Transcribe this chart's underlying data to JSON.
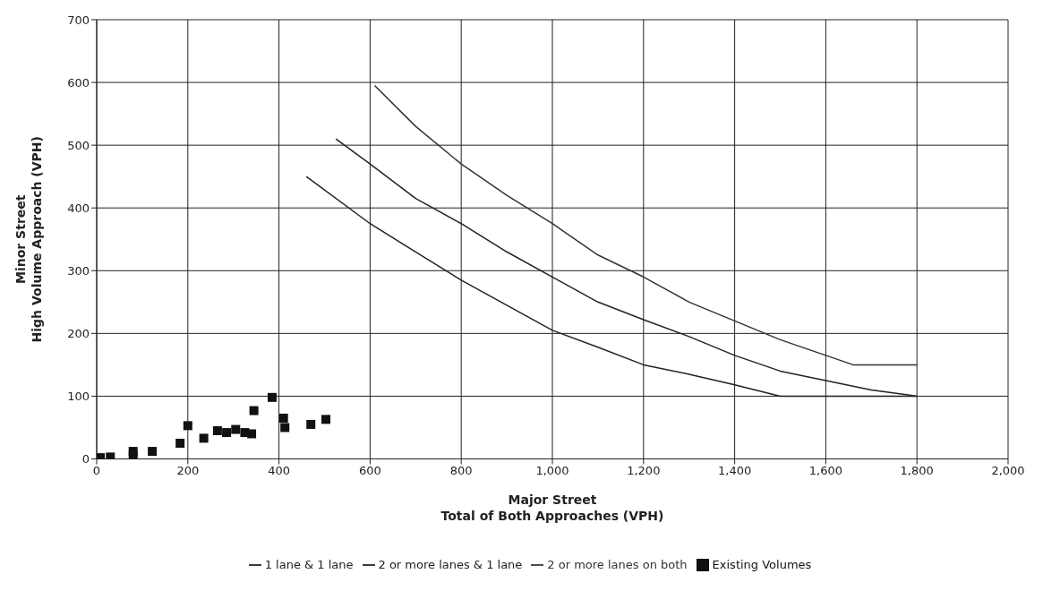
{
  "chart_data": {
    "type": "scatter",
    "xlabel": "Major Street\nTotal of Both Approaches (VPH)",
    "ylabel": "Minor Street\nHigh Volume Approach (VPH)",
    "xlim": [
      0,
      2000
    ],
    "ylim": [
      0,
      700
    ],
    "xticks": [
      0,
      200,
      400,
      600,
      800,
      {
        "value": 1000,
        "label": "1,000"
      },
      {
        "value": 1200,
        "label": "1,200"
      },
      {
        "value": 1400,
        "label": "1,400"
      },
      {
        "value": 1600,
        "label": "1,600"
      },
      {
        "value": 1800,
        "label": "1,800"
      },
      {
        "value": 2000,
        "label": "2,000"
      }
    ],
    "yticks": [
      0,
      100,
      200,
      300,
      400,
      500,
      600,
      700
    ],
    "grid": true,
    "legend": "bottom",
    "series": [
      {
        "name": "Existing Volumes",
        "marker": "square",
        "color": "#111111",
        "x": [
          8,
          30,
          80,
          80,
          122,
          183,
          200,
          235,
          265,
          285,
          305,
          325,
          340,
          345,
          385,
          410,
          413,
          470,
          503
        ],
        "values": [
          2,
          3,
          5,
          12,
          12,
          25,
          53,
          33,
          45,
          42,
          47,
          42,
          40,
          77,
          98,
          65,
          50,
          55,
          63
        ]
      },
      {
        "name": "1 lane & 1 lane",
        "type": "line",
        "marker": "none",
        "color": "#222222",
        "x": [
          460,
          600,
          700,
          800,
          900,
          1000,
          1100,
          1200,
          1300,
          1400,
          1500,
          1800
        ],
        "values": [
          450,
          375,
          330,
          285,
          245,
          205,
          178,
          150,
          135,
          118,
          100,
          100
        ]
      },
      {
        "name": "2 or more lanes & 1 lane",
        "type": "line",
        "marker": "none",
        "color": "#222222",
        "x": [
          525,
          600,
          700,
          800,
          900,
          1000,
          1100,
          1200,
          1300,
          1400,
          1500,
          1600,
          1700,
          1800
        ],
        "values": [
          510,
          470,
          415,
          375,
          330,
          290,
          250,
          222,
          195,
          165,
          140,
          125,
          110,
          100
        ]
      },
      {
        "name": "2 or more lanes on both",
        "type": "line",
        "marker": "none",
        "color": "#333333",
        "x": [
          610,
          700,
          800,
          900,
          1000,
          1100,
          1200,
          1300,
          1400,
          1500,
          1660,
          1800
        ],
        "values": [
          595,
          530,
          470,
          420,
          375,
          325,
          290,
          250,
          220,
          190,
          150,
          150
        ]
      }
    ]
  }
}
